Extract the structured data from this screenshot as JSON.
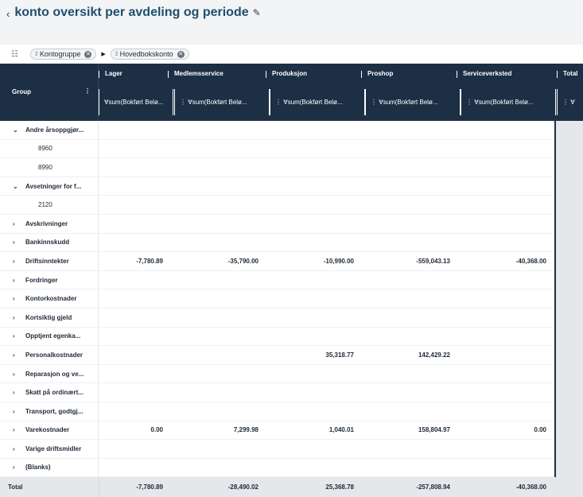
{
  "header": {
    "title": "konto oversikt per avdeling og periode"
  },
  "toolbar": {
    "chips": [
      {
        "label": "Kontogruppe"
      },
      {
        "label": "Hovedbokskonto"
      }
    ]
  },
  "grid": {
    "group_header": "Group",
    "columns": [
      {
        "name": "Lager",
        "sub": "∀sum(Bokført Belø..."
      },
      {
        "name": "Medlemsservice",
        "sub": "⋮ ∀sum(Bokført Belø..."
      },
      {
        "name": "Produksjon",
        "sub": "⋮ ∀sum(Bokført Belø..."
      },
      {
        "name": "Proshop",
        "sub": "⋮ ∀sum(Bokført Belø..."
      },
      {
        "name": "Serviceverksted",
        "sub": "⋮ ∀sum(Bokført Belø..."
      },
      {
        "name": "Total",
        "sub": "⋮ ∀"
      }
    ],
    "rows": [
      {
        "label": "Andre årsoppgjør...",
        "type": "group-open",
        "values": [
          "",
          "",
          "",
          "",
          ""
        ]
      },
      {
        "label": "8960",
        "type": "leaf",
        "values": [
          "",
          "",
          "",
          "",
          ""
        ]
      },
      {
        "label": "8990",
        "type": "leaf",
        "values": [
          "",
          "",
          "",
          "",
          ""
        ]
      },
      {
        "label": "Avsetninger for f...",
        "type": "group-open",
        "values": [
          "",
          "",
          "",
          "",
          ""
        ]
      },
      {
        "label": "2120",
        "type": "leaf",
        "values": [
          "",
          "",
          "",
          "",
          ""
        ]
      },
      {
        "label": "Avskrivninger",
        "type": "group",
        "values": [
          "",
          "",
          "",
          "",
          ""
        ]
      },
      {
        "label": "Bankinnskudd",
        "type": "group",
        "values": [
          "",
          "",
          "",
          "",
          ""
        ]
      },
      {
        "label": "Driftsinntekter",
        "type": "group",
        "values": [
          "-7,780.89",
          "-35,790.00",
          "-10,990.00",
          "-559,043.13",
          "-40,368.00"
        ]
      },
      {
        "label": "Fordringer",
        "type": "group",
        "values": [
          "",
          "",
          "",
          "",
          ""
        ]
      },
      {
        "label": "Kontorkostnader",
        "type": "group",
        "values": [
          "",
          "",
          "",
          "",
          ""
        ]
      },
      {
        "label": "Kortsiktig gjeld",
        "type": "group",
        "values": [
          "",
          "",
          "",
          "",
          ""
        ]
      },
      {
        "label": "Opptjent egenka...",
        "type": "group",
        "values": [
          "",
          "",
          "",
          "",
          ""
        ]
      },
      {
        "label": "Personalkostnader",
        "type": "group",
        "values": [
          "",
          "",
          "35,318.77",
          "142,429.22",
          ""
        ]
      },
      {
        "label": "Reparasjon og ve...",
        "type": "group",
        "values": [
          "",
          "",
          "",
          "",
          ""
        ]
      },
      {
        "label": "Skatt på ordinært...",
        "type": "group",
        "values": [
          "",
          "",
          "",
          "",
          ""
        ]
      },
      {
        "label": "Transport, godtgj...",
        "type": "group",
        "values": [
          "",
          "",
          "",
          "",
          ""
        ]
      },
      {
        "label": "Varekostnader",
        "type": "group",
        "values": [
          "0.00",
          "7,299.98",
          "1,040.01",
          "158,804.97",
          "0.00"
        ]
      },
      {
        "label": "Varige driftsmidler",
        "type": "group",
        "values": [
          "",
          "",
          "",
          "",
          ""
        ]
      },
      {
        "label": "(Blanks)",
        "type": "group",
        "values": [
          "",
          "",
          "",
          "",
          ""
        ]
      }
    ],
    "total": {
      "label": "Total",
      "values": [
        "-7,780.89",
        "-28,490.02",
        "25,368.78",
        "-257,808.94",
        "-40,368.00"
      ]
    }
  }
}
